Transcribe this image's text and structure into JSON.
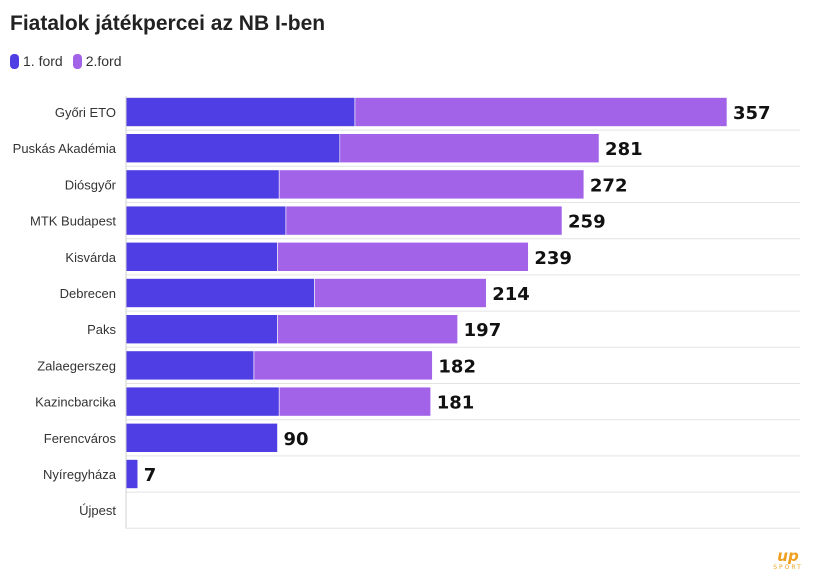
{
  "title": "Fiatalok játékpercei az NB I-ben",
  "logo": {
    "mark": "up",
    "text": "SPORT"
  },
  "colors": {
    "series1": "#4f3ee3",
    "series2": "#a263e8",
    "grid": "#e3e3e3",
    "axis": "#d0d0d0"
  },
  "chart_data": {
    "type": "bar",
    "orientation": "horizontal",
    "stacked": true,
    "categories": [
      "Győri ETO",
      "Puskás Akadémia",
      "Diósgyőr",
      "MTK Budapest",
      "Kisvárda",
      "Debrecen",
      "Paks",
      "Zalaegerszeg",
      "Kazincbarcika",
      "Ferencváros",
      "Nyíregyháza",
      "Újpest"
    ],
    "series": [
      {
        "name": "1. ford",
        "values": [
          136,
          127,
          91,
          95,
          90,
          112,
          90,
          76,
          91,
          90,
          7,
          0
        ]
      },
      {
        "name": "2.ford",
        "values": [
          221,
          154,
          181,
          164,
          149,
          102,
          107,
          106,
          90,
          0,
          0,
          0
        ]
      }
    ],
    "totals": [
      "357",
      "281",
      "272",
      "259",
      "239",
      "214",
      "197",
      "182",
      "181",
      "90",
      "7",
      ""
    ],
    "xlim": [
      0,
      400
    ],
    "grid": true,
    "legend": "top-left"
  }
}
